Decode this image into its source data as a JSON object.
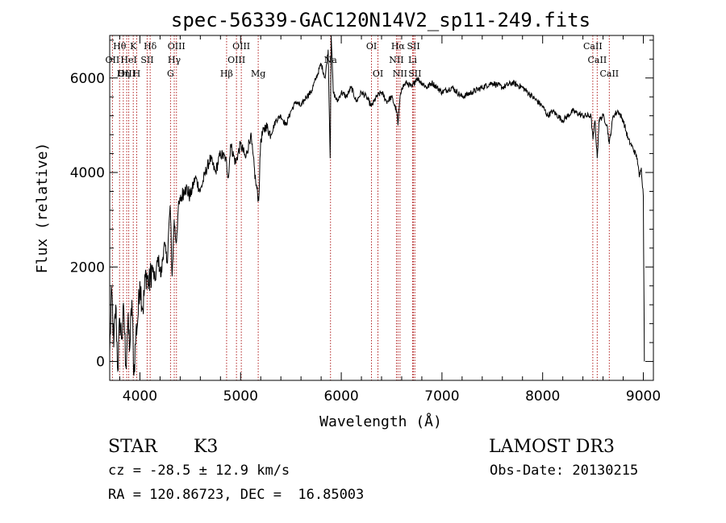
{
  "chart_data": {
    "type": "line",
    "title": "spec-56339-GAC120N14V2_sp11-249.fits",
    "xlabel": "Wavelength (Å)",
    "ylabel": "Flux (relative)",
    "xlim": [
      3700,
      9100
    ],
    "ylim": [
      -400,
      6900
    ],
    "x_ticks": [
      4000,
      5000,
      6000,
      7000,
      8000,
      9000
    ],
    "y_ticks": [
      0,
      2000,
      4000,
      6000
    ],
    "grid": false,
    "line_color": "#000000",
    "series": [
      {
        "x": [
          3700,
          3720,
          3740,
          3760,
          3780,
          3800,
          3820,
          3840,
          3860,
          3880,
          3900,
          3920,
          3940,
          3960,
          3980,
          4000,
          4030,
          4060,
          4090,
          4120,
          4150,
          4180,
          4210,
          4240,
          4270,
          4300,
          4320,
          4340,
          4360,
          4380,
          4400,
          4450,
          4500,
          4550,
          4600,
          4650,
          4700,
          4750,
          4800,
          4850,
          4880,
          4900,
          4950,
          5000,
          5050,
          5100,
          5150,
          5180,
          5200,
          5250,
          5300,
          5350,
          5400,
          5450,
          5500,
          5550,
          5600,
          5650,
          5700,
          5750,
          5800,
          5840,
          5870,
          5890,
          5895,
          5900,
          5920,
          5960,
          6000,
          6050,
          6100,
          6150,
          6200,
          6250,
          6300,
          6350,
          6400,
          6450,
          6500,
          6550,
          6563,
          6580,
          6600,
          6650,
          6700,
          6750,
          6800,
          6850,
          6900,
          6950,
          7000,
          7100,
          7200,
          7300,
          7400,
          7500,
          7600,
          7700,
          7800,
          7850,
          7900,
          8000,
          8050,
          8100,
          8200,
          8300,
          8400,
          8480,
          8500,
          8520,
          8542,
          8560,
          8600,
          8640,
          8662,
          8700,
          8750,
          8800,
          8850,
          8900,
          8940,
          8960,
          8980,
          9000,
          9010
        ],
        "y": [
          200,
          1500,
          300,
          1200,
          -200,
          900,
          500,
          1100,
          -100,
          800,
          300,
          1300,
          -300,
          600,
          900,
          1700,
          1100,
          1900,
          1600,
          2000,
          1700,
          2200,
          1800,
          2500,
          2100,
          3300,
          1800,
          3000,
          2500,
          3200,
          3400,
          3700,
          3500,
          3900,
          3600,
          4000,
          4300,
          4000,
          4400,
          4300,
          3900,
          4600,
          4200,
          4600,
          4300,
          4800,
          3800,
          3400,
          4700,
          5000,
          4800,
          5100,
          5200,
          5000,
          5300,
          5500,
          5400,
          5600,
          5700,
          6000,
          6300,
          6000,
          6600,
          4300,
          5800,
          6900,
          5700,
          5500,
          5700,
          5600,
          5800,
          5500,
          5700,
          5600,
          5400,
          5600,
          5700,
          5500,
          5600,
          5300,
          5000,
          5500,
          5800,
          5900,
          5800,
          6000,
          5900,
          5800,
          5900,
          5800,
          5700,
          5800,
          5600,
          5700,
          5800,
          5900,
          5800,
          5900,
          5800,
          5700,
          5600,
          5400,
          5200,
          5300,
          5100,
          5300,
          5200,
          5200,
          4700,
          5100,
          4300,
          5100,
          5200,
          5000,
          4600,
          5200,
          5300,
          5100,
          4700,
          4500,
          4300,
          3900,
          4100,
          3500,
          0
        ]
      }
    ],
    "lines": [
      {
        "label": "Hθ",
        "x": 3798
      },
      {
        "label": "K",
        "x": 3934
      },
      {
        "label": "Hδ",
        "x": 4102
      },
      {
        "label": "OIII",
        "x": 4363
      },
      {
        "label": "OIII",
        "x": 5007
      },
      {
        "label": "OI",
        "x": 6300
      },
      {
        "label": "Hα",
        "x": 6563
      },
      {
        "label": "SII",
        "x": 6717
      },
      {
        "label": "CaII",
        "x": 8498
      },
      {
        "label": "OII",
        "x": 3727
      },
      {
        "label": "HeI",
        "x": 3889
      },
      {
        "label": "SII",
        "x": 4072
      },
      {
        "label": "Hγ",
        "x": 4341
      },
      {
        "label": "OIII",
        "x": 4959
      },
      {
        "label": "Na",
        "x": 5893
      },
      {
        "label": "NII",
        "x": 6548
      },
      {
        "label": "Li",
        "x": 6708
      },
      {
        "label": "CaII",
        "x": 8542
      },
      {
        "label": "OIII",
        "x": 3869
      },
      {
        "label": "Hη",
        "x": 3835
      },
      {
        "label": "H",
        "x": 3968
      },
      {
        "label": "G",
        "x": 4304
      },
      {
        "label": "Hβ",
        "x": 4861
      },
      {
        "label": "Mg",
        "x": 5175
      },
      {
        "label": "OI",
        "x": 6364
      },
      {
        "label": "NII",
        "x": 6583
      },
      {
        "label": "SII",
        "x": 6731
      },
      {
        "label": "CaII",
        "x": 8662
      }
    ]
  },
  "info": {
    "class": "STAR",
    "subclass": "K3",
    "survey": "LAMOST DR3",
    "cz": "cz = -28.5 ± 12.9 km/s",
    "obs_date": "Obs-Date: 20130215",
    "coords": "RA = 120.86723, DEC =  16.85003"
  }
}
